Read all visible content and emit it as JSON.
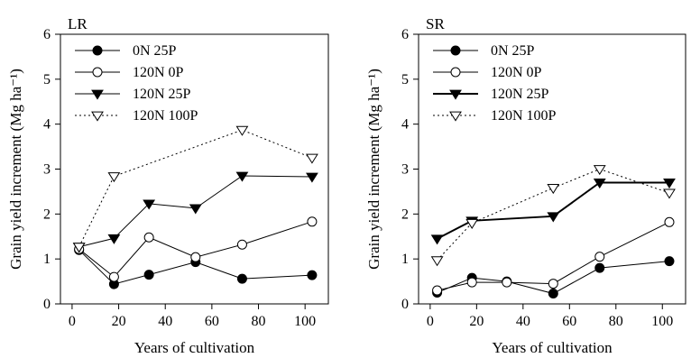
{
  "chart_data": [
    {
      "type": "line",
      "panel_label": "LR",
      "xlabel": "Years of cultivation",
      "ylabel": "Grain yield increment (Mg ha⁻¹)",
      "xlim": [
        -5,
        110
      ],
      "ylim": [
        0,
        6
      ],
      "xticks": [
        0,
        20,
        40,
        60,
        80,
        100
      ],
      "yticks": [
        0,
        1,
        2,
        3,
        4,
        5,
        6
      ],
      "legend": "top-left",
      "grid": false,
      "x": [
        3,
        18,
        33,
        53,
        73,
        103
      ],
      "series": [
        {
          "name": "0N 25P",
          "marker": "filled-circle",
          "line": "solid",
          "values": [
            1.2,
            0.44,
            0.65,
            0.93,
            0.56,
            0.64
          ]
        },
        {
          "name": "120N 0P",
          "marker": "open-circle",
          "line": "solid",
          "values": [
            1.22,
            0.6,
            1.48,
            1.04,
            1.32,
            1.83
          ]
        },
        {
          "name": "120N 25P",
          "marker": "filled-triangle-down",
          "line": "solid",
          "values": [
            1.27,
            1.46,
            2.23,
            2.13,
            2.85,
            2.83
          ]
        },
        {
          "name": "120N 100P",
          "marker": "open-triangle-down",
          "line": "dotted",
          "values": [
            1.27,
            2.84,
            null,
            null,
            3.87,
            3.25
          ]
        }
      ]
    },
    {
      "type": "line",
      "panel_label": "SR",
      "xlabel": "Years of cultivation",
      "ylabel": "Grain yield increment (Mg ha⁻¹)",
      "xlim": [
        -5,
        110
      ],
      "ylim": [
        0,
        6
      ],
      "xticks": [
        0,
        20,
        40,
        60,
        80,
        100
      ],
      "yticks": [
        0,
        1,
        2,
        3,
        4,
        5,
        6
      ],
      "legend": "top-left",
      "grid": false,
      "x": [
        3,
        18,
        33,
        53,
        73,
        103
      ],
      "series": [
        {
          "name": "0N 25P",
          "marker": "filled-circle",
          "line": "solid",
          "values": [
            0.25,
            0.58,
            0.5,
            0.23,
            0.8,
            0.95
          ]
        },
        {
          "name": "120N 0P",
          "marker": "open-circle",
          "line": "solid",
          "values": [
            0.3,
            0.48,
            0.48,
            0.45,
            1.05,
            1.82
          ]
        },
        {
          "name": "120N 25P",
          "marker": "filled-triangle-down",
          "line": "bold",
          "values": [
            1.45,
            1.85,
            null,
            1.95,
            2.7,
            2.7
          ]
        },
        {
          "name": "120N 100P",
          "marker": "open-triangle-down",
          "line": "dotted",
          "values": [
            0.97,
            1.8,
            null,
            2.58,
            3.0,
            2.47
          ]
        }
      ]
    }
  ]
}
